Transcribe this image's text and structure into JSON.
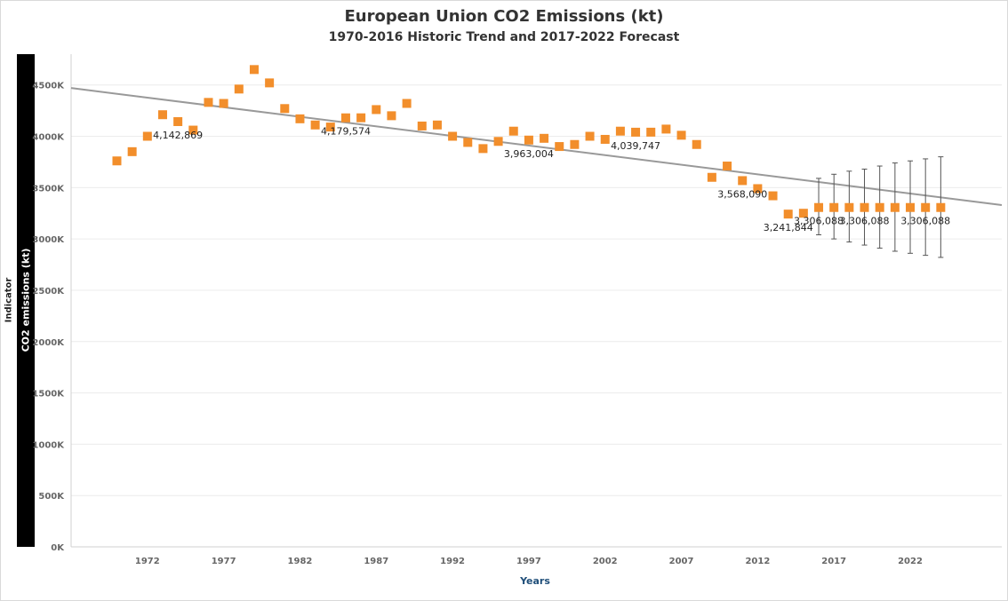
{
  "chart_data": {
    "type": "scatter",
    "title": "European Union CO2 Emissions (kt)",
    "subtitle": "1970-2016 Historic Trend and 2017-2022 Forecast",
    "xlabel": "Years",
    "ylabel": "CO2 emissions (kt)",
    "ylabel_group": "Indicator",
    "xlim": [
      1967,
      2028
    ],
    "ylim": [
      0,
      4800000
    ],
    "x_ticks": [
      1972,
      1977,
      1982,
      1987,
      1992,
      1997,
      2002,
      2007,
      2012,
      2017,
      2022
    ],
    "y_ticks": [
      0,
      500000,
      1000000,
      1500000,
      2000000,
      2500000,
      3000000,
      3500000,
      4000000,
      4500000
    ],
    "y_tick_labels": [
      "0K",
      "500K",
      "1000K",
      "1500K",
      "2000K",
      "2500K",
      "3000K",
      "3500K",
      "4000K",
      "4500K"
    ],
    "marker_color": "#f28e2b",
    "trend_color": "#999999",
    "grid": true,
    "series": [
      {
        "name": "",
        "points": [
          [
            1970,
            3760000
          ],
          [
            1971,
            3850000
          ],
          [
            1972,
            4000000
          ],
          [
            1973,
            4210000
          ],
          [
            1974,
            4142869
          ],
          [
            1975,
            4060000
          ],
          [
            1976,
            4330000
          ],
          [
            1977,
            4320000
          ],
          [
            1978,
            4460000
          ],
          [
            1979,
            4650000
          ],
          [
            1980,
            4520000
          ],
          [
            1981,
            4270000
          ],
          [
            1982,
            4170000
          ],
          [
            1983,
            4110000
          ],
          [
            1984,
            4090000
          ],
          [
            1985,
            4179574
          ],
          [
            1986,
            4180000
          ],
          [
            1987,
            4260000
          ],
          [
            1988,
            4200000
          ],
          [
            1989,
            4320000
          ],
          [
            1990,
            4100000
          ],
          [
            1991,
            4110000
          ],
          [
            1992,
            4000000
          ],
          [
            1993,
            3940000
          ],
          [
            1994,
            3880000
          ],
          [
            1995,
            3950000
          ],
          [
            1996,
            4050000
          ],
          [
            1997,
            3963004
          ],
          [
            1998,
            3980000
          ],
          [
            1999,
            3900000
          ],
          [
            2000,
            3920000
          ],
          [
            2001,
            4000000
          ],
          [
            2002,
            3970000
          ],
          [
            2003,
            4050000
          ],
          [
            2004,
            4039747
          ],
          [
            2005,
            4040000
          ],
          [
            2006,
            4070000
          ],
          [
            2007,
            4010000
          ],
          [
            2008,
            3920000
          ],
          [
            2009,
            3600000
          ],
          [
            2010,
            3710000
          ],
          [
            2011,
            3568090
          ],
          [
            2012,
            3490000
          ],
          [
            2013,
            3420000
          ],
          [
            2014,
            3241844
          ],
          [
            2015,
            3250000
          ],
          [
            2016,
            3306088
          ],
          [
            2017,
            3306088
          ],
          [
            2018,
            3306088
          ],
          [
            2019,
            3306088
          ],
          [
            2020,
            3306088
          ],
          [
            2021,
            3306088
          ],
          [
            2022,
            3306088
          ],
          [
            2023,
            3306088
          ],
          [
            2024,
            3306088
          ]
        ]
      }
    ],
    "error_bars": [
      {
        "x": 2016,
        "low": 3040000,
        "high": 3590000
      },
      {
        "x": 2017,
        "low": 3000000,
        "high": 3630000
      },
      {
        "x": 2018,
        "low": 2970000,
        "high": 3660000
      },
      {
        "x": 2019,
        "low": 2940000,
        "high": 3680000
      },
      {
        "x": 2020,
        "low": 2910000,
        "high": 3710000
      },
      {
        "x": 2021,
        "low": 2880000,
        "high": 3740000
      },
      {
        "x": 2022,
        "low": 2860000,
        "high": 3760000
      },
      {
        "x": 2023,
        "low": 2840000,
        "high": 3780000
      },
      {
        "x": 2024,
        "low": 2820000,
        "high": 3800000
      }
    ],
    "trend_line": {
      "x0": 1967,
      "y0": 4470000,
      "x1": 2028,
      "y1": 3330000
    },
    "data_labels": [
      {
        "x": 1974,
        "y": 4142869,
        "text": "4,142,869"
      },
      {
        "x": 1985,
        "y": 4179574,
        "text": "4,179,574"
      },
      {
        "x": 1997,
        "y": 3963004,
        "text": "3,963,004"
      },
      {
        "x": 2004,
        "y": 4039747,
        "text": "4,039,747"
      },
      {
        "x": 2011,
        "y": 3568090,
        "text": "3,568,090"
      },
      {
        "x": 2014,
        "y": 3241844,
        "text": "3,241,844"
      },
      {
        "x": 2016,
        "y": 3306088,
        "text": "3,306,088"
      },
      {
        "x": 2019,
        "y": 3306088,
        "text": "3,306,088"
      },
      {
        "x": 2023,
        "y": 3306088,
        "text": "3,306,088"
      }
    ]
  }
}
